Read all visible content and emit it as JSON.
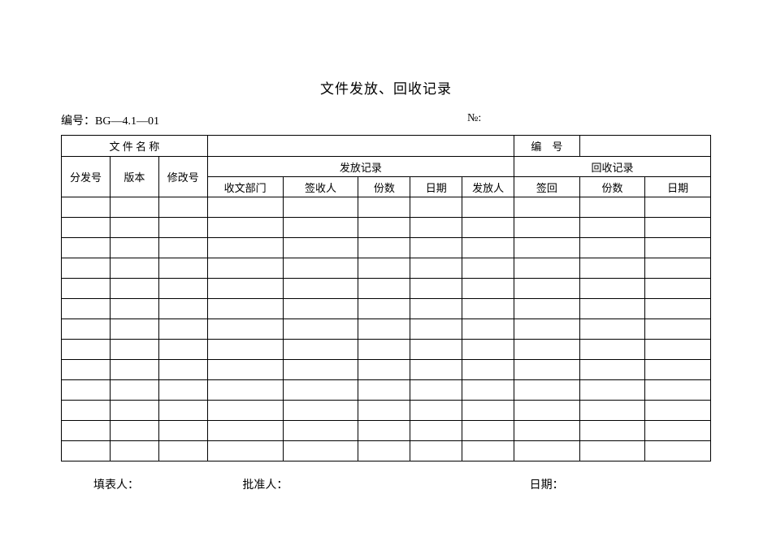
{
  "title": "文件发放、回收记录",
  "doc_no_label": "编号：BG—4.1—01",
  "serial_label": "№:",
  "table": {
    "row1": {
      "file_name_label": "文 件 名 称",
      "serial_no_label": "编　号"
    },
    "row2": {
      "dist_no": "分发号",
      "version": "版本",
      "rev_no": "修改号",
      "issue_record": "发放记录",
      "recycle_record": "回收记录"
    },
    "row3": {
      "recv_dept": "收文部门",
      "signer": "签收人",
      "copies": "份数",
      "date": "日期",
      "issuer": "发放人",
      "sign_back": "签回",
      "copies2": "份数",
      "date2": "日期"
    },
    "data_row_count": 13,
    "col_widths_pct": [
      7.5,
      7.5,
      7.5,
      11.625,
      11.625,
      8.0,
      8.0,
      8.0,
      10.0916,
      10.0916,
      10.0916
    ]
  },
  "footer": {
    "filler": "填表人：",
    "approver": "批准人：",
    "date": "日期："
  },
  "colors": {
    "background": "#ffffff",
    "text": "#000000",
    "border": "#000000"
  },
  "font": {
    "title_size_pt": 17,
    "body_size_pt": 13,
    "header_size_pt": 14
  }
}
